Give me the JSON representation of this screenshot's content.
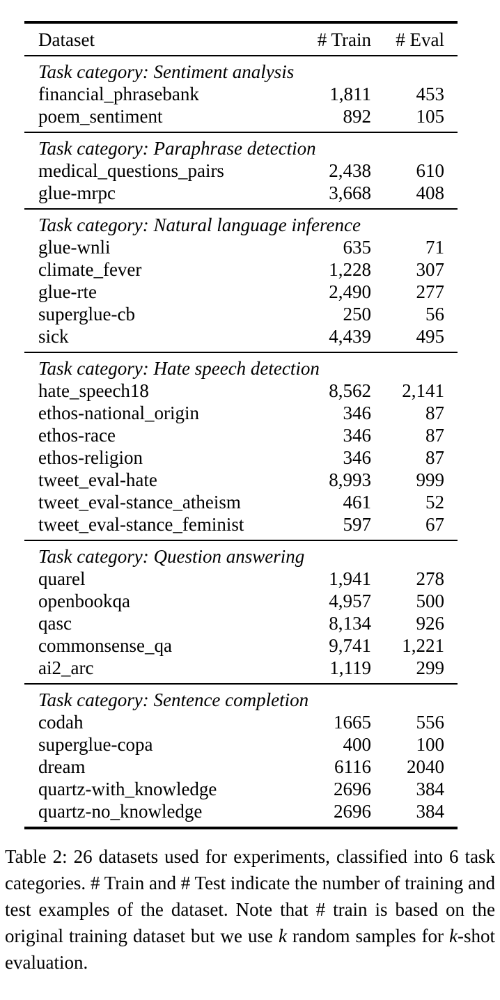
{
  "page": {
    "background_color": "#ffffff",
    "text_color": "#000000"
  },
  "table": {
    "columns": [
      "Dataset",
      "# Train",
      "# Eval"
    ],
    "sections": [
      {
        "category": "Task category: Sentiment analysis",
        "rows": [
          {
            "dataset": "financial_phrasebank",
            "train": "1,811",
            "eval": "453"
          },
          {
            "dataset": "poem_sentiment",
            "train": "892",
            "eval": "105"
          }
        ]
      },
      {
        "category": "Task category: Paraphrase detection",
        "rows": [
          {
            "dataset": "medical_questions_pairs",
            "train": "2,438",
            "eval": "610"
          },
          {
            "dataset": "glue-mrpc",
            "train": "3,668",
            "eval": "408"
          }
        ]
      },
      {
        "category": "Task category: Natural language inference",
        "rows": [
          {
            "dataset": "glue-wnli",
            "train": "635",
            "eval": "71"
          },
          {
            "dataset": "climate_fever",
            "train": "1,228",
            "eval": "307"
          },
          {
            "dataset": "glue-rte",
            "train": "2,490",
            "eval": "277"
          },
          {
            "dataset": "superglue-cb",
            "train": "250",
            "eval": "56"
          },
          {
            "dataset": "sick",
            "train": "4,439",
            "eval": "495"
          }
        ]
      },
      {
        "category": "Task category: Hate speech detection",
        "rows": [
          {
            "dataset": "hate_speech18",
            "train": "8,562",
            "eval": "2,141"
          },
          {
            "dataset": "ethos-national_origin",
            "train": "346",
            "eval": "87"
          },
          {
            "dataset": "ethos-race",
            "train": "346",
            "eval": "87"
          },
          {
            "dataset": "ethos-religion",
            "train": "346",
            "eval": "87"
          },
          {
            "dataset": "tweet_eval-hate",
            "train": "8,993",
            "eval": "999"
          },
          {
            "dataset": "tweet_eval-stance_atheism",
            "train": "461",
            "eval": "52"
          },
          {
            "dataset": "tweet_eval-stance_feminist",
            "train": "597",
            "eval": "67"
          }
        ]
      },
      {
        "category": "Task category: Question answering",
        "rows": [
          {
            "dataset": "quarel",
            "train": "1,941",
            "eval": "278"
          },
          {
            "dataset": "openbookqa",
            "train": "4,957",
            "eval": "500"
          },
          {
            "dataset": "qasc",
            "train": "8,134",
            "eval": "926"
          },
          {
            "dataset": "commonsense_qa",
            "train": "9,741",
            "eval": "1,221"
          },
          {
            "dataset": "ai2_arc",
            "train": "1,119",
            "eval": "299"
          }
        ]
      },
      {
        "category": "Task category: Sentence completion",
        "rows": [
          {
            "dataset": "codah",
            "train": "1665",
            "eval": "556"
          },
          {
            "dataset": "superglue-copa",
            "train": "400",
            "eval": "100"
          },
          {
            "dataset": "dream",
            "train": "6116",
            "eval": "2040"
          },
          {
            "dataset": "quartz-with_knowledge",
            "train": "2696",
            "eval": "384"
          },
          {
            "dataset": "quartz-no_knowledge",
            "train": "2696",
            "eval": "384"
          }
        ]
      }
    ]
  },
  "caption": {
    "full_text": "Table 2: 26 datasets used for experiments, classified into 6 task categories. # Train and # Test indicate the number of training and test examples of the dataset. Note that # train is based on the original training dataset but we use k random samples for k-shot evaluation.",
    "segments": [
      {
        "text": "Table 2: 26 datasets used for experiments, classified into 6 task categories. # Train and # Test indicate the number of training and test examples of the dataset. Note that # train is based on the original training dataset but we use ",
        "italic": false
      },
      {
        "text": "k",
        "italic": true
      },
      {
        "text": " random samples for ",
        "italic": false
      },
      {
        "text": "k",
        "italic": true
      },
      {
        "text": "-shot evaluation.",
        "italic": false
      }
    ]
  }
}
